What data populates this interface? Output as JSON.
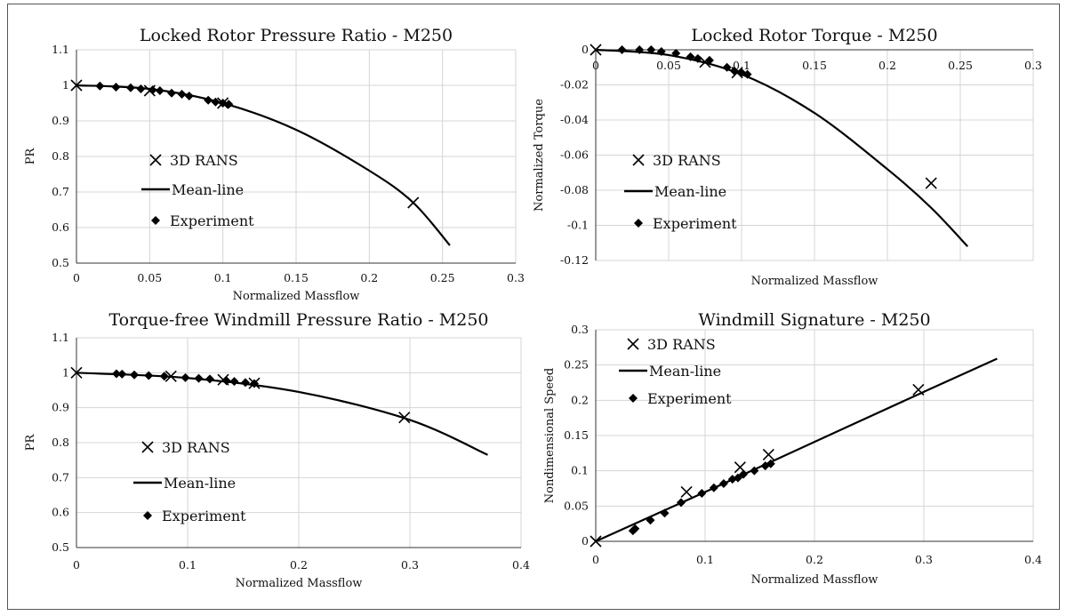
{
  "colors": {
    "line": "#000000",
    "grid": "#d4d4d4",
    "frame": "#555555"
  },
  "chart_data": [
    {
      "type": "scatter",
      "title": "Locked Rotor Pressure Ratio - M250",
      "xlabel": "Normalized Massflow",
      "ylabel": "PR",
      "xlim": [
        0,
        0.3
      ],
      "ylim": [
        0.5,
        1.1
      ],
      "xticks": [
        0,
        0.05,
        0.1,
        0.15,
        0.2,
        0.25,
        0.3
      ],
      "xtick_labels": [
        "0",
        "0.05",
        "0.1",
        "0.15",
        "0.2",
        "0.25",
        "0.3"
      ],
      "yticks": [
        0.5,
        0.6,
        0.7,
        0.8,
        0.9,
        1.0,
        1.1
      ],
      "ytick_labels": [
        "0.5",
        "0.6",
        "0.7",
        "0.8",
        "0.9",
        "1",
        "1.1"
      ],
      "grid": true,
      "legend_position": "center-left",
      "series": [
        {
          "name": "3D RANS",
          "marker": "x",
          "x": [
            0,
            0.05,
            0.1,
            0.23
          ],
          "y": [
            1.0,
            0.985,
            0.95,
            0.67
          ]
        },
        {
          "name": "Mean-line",
          "marker": "line",
          "x": [
            0,
            0.05,
            0.1,
            0.15,
            0.2,
            0.23,
            0.255
          ],
          "y": [
            1.0,
            0.99,
            0.95,
            0.875,
            0.76,
            0.67,
            0.55
          ]
        },
        {
          "name": "Experiment",
          "marker": "diamond",
          "x": [
            0.016,
            0.027,
            0.037,
            0.044,
            0.052,
            0.057,
            0.065,
            0.072,
            0.077,
            0.09,
            0.095,
            0.1,
            0.104
          ],
          "y": [
            0.998,
            0.995,
            0.993,
            0.99,
            0.987,
            0.985,
            0.978,
            0.975,
            0.97,
            0.958,
            0.953,
            0.95,
            0.947
          ]
        }
      ]
    },
    {
      "type": "scatter",
      "title": "Locked Rotor Torque - M250",
      "xlabel": "Normalized Massflow",
      "ylabel": "Normalized Torque",
      "xlim": [
        0,
        0.3
      ],
      "ylim": [
        -0.12,
        0
      ],
      "xticks": [
        0,
        0.05,
        0.1,
        0.15,
        0.2,
        0.25,
        0.3
      ],
      "xtick_labels": [
        "0",
        "0.05",
        "0.1",
        "0.15",
        "0.2",
        "0.25",
        "0.3"
      ],
      "yticks": [
        -0.12,
        -0.1,
        -0.08,
        -0.06,
        -0.04,
        -0.02,
        0
      ],
      "ytick_labels": [
        "-0.12",
        "-0.1",
        "-0.08",
        "-0.06",
        "-0.04",
        "-0.02",
        "0"
      ],
      "grid": true,
      "legend_position": "center-left",
      "series": [
        {
          "name": "3D RANS",
          "marker": "x",
          "x": [
            0,
            0.075,
            0.097,
            0.23
          ],
          "y": [
            0,
            -0.007,
            -0.013,
            -0.076
          ]
        },
        {
          "name": "Mean-line",
          "marker": "line",
          "x": [
            0,
            0.05,
            0.1,
            0.15,
            0.2,
            0.23,
            0.255
          ],
          "y": [
            0,
            -0.003,
            -0.014,
            -0.036,
            -0.068,
            -0.09,
            -0.112
          ]
        },
        {
          "name": "Experiment",
          "marker": "diamond",
          "x": [
            0.018,
            0.03,
            0.038,
            0.045,
            0.055,
            0.065,
            0.07,
            0.078,
            0.09,
            0.095,
            0.1,
            0.104
          ],
          "y": [
            0,
            0,
            0,
            -0.001,
            -0.002,
            -0.004,
            -0.005,
            -0.006,
            -0.01,
            -0.012,
            -0.013,
            -0.014
          ]
        }
      ]
    },
    {
      "type": "scatter",
      "title": "Torque-free Windmill Pressure Ratio - M250",
      "xlabel": "Normalized Massflow",
      "ylabel": "PR",
      "xlim": [
        0,
        0.4
      ],
      "ylim": [
        0.5,
        1.1
      ],
      "xticks": [
        0,
        0.1,
        0.2,
        0.3,
        0.4
      ],
      "xtick_labels": [
        "0",
        "0.1",
        "0.2",
        "0.3",
        "0.4"
      ],
      "yticks": [
        0.5,
        0.6,
        0.7,
        0.8,
        0.9,
        1.0,
        1.1
      ],
      "ytick_labels": [
        "0.5",
        "0.6",
        "0.7",
        "0.8",
        "0.9",
        "1",
        "1.1"
      ],
      "grid": true,
      "legend_position": "center-left",
      "series": [
        {
          "name": "3D RANS",
          "marker": "x",
          "x": [
            0,
            0.085,
            0.132,
            0.16,
            0.295
          ],
          "y": [
            1.0,
            0.99,
            0.98,
            0.97,
            0.872
          ]
        },
        {
          "name": "Mean-line",
          "marker": "line",
          "x": [
            0,
            0.1,
            0.2,
            0.3,
            0.37
          ],
          "y": [
            1.0,
            0.985,
            0.945,
            0.865,
            0.765
          ]
        },
        {
          "name": "Experiment",
          "marker": "diamond",
          "x": [
            0.036,
            0.041,
            0.052,
            0.065,
            0.079,
            0.098,
            0.11,
            0.12,
            0.135,
            0.142,
            0.152,
            0.16
          ],
          "y": [
            0.997,
            0.996,
            0.994,
            0.992,
            0.99,
            0.986,
            0.984,
            0.982,
            0.977,
            0.975,
            0.972,
            0.969
          ]
        }
      ]
    },
    {
      "type": "scatter",
      "title": "Windmill Signature - M250",
      "xlabel": "Normalized Massflow",
      "ylabel": "Nondimensional Speed",
      "xlim": [
        0,
        0.4
      ],
      "ylim": [
        0,
        0.3
      ],
      "xticks": [
        0,
        0.1,
        0.2,
        0.3,
        0.4
      ],
      "xtick_labels": [
        "0",
        "0.1",
        "0.2",
        "0.3",
        "0.4"
      ],
      "yticks": [
        0,
        0.05,
        0.1,
        0.15,
        0.2,
        0.25,
        0.3
      ],
      "ytick_labels": [
        "0",
        "0.05",
        "0.1",
        "0.15",
        "0.2",
        "0.25",
        "0.3"
      ],
      "grid": true,
      "legend_position": "top-left",
      "series": [
        {
          "name": "3D RANS",
          "marker": "x",
          "x": [
            0,
            0.083,
            0.132,
            0.158,
            0.295
          ],
          "y": [
            0,
            0.07,
            0.105,
            0.123,
            0.215
          ]
        },
        {
          "name": "Mean-line",
          "marker": "line",
          "x": [
            0,
            0.1,
            0.2,
            0.3,
            0.367
          ],
          "y": [
            0,
            0.07,
            0.141,
            0.212,
            0.259
          ]
        },
        {
          "name": "Experiment",
          "marker": "diamond",
          "x": [
            0.034,
            0.036,
            0.05,
            0.063,
            0.078,
            0.097,
            0.108,
            0.117,
            0.125,
            0.13,
            0.135,
            0.145,
            0.155,
            0.16
          ],
          "y": [
            0.015,
            0.018,
            0.03,
            0.04,
            0.055,
            0.068,
            0.076,
            0.082,
            0.088,
            0.09,
            0.095,
            0.1,
            0.107,
            0.11
          ]
        }
      ]
    }
  ]
}
